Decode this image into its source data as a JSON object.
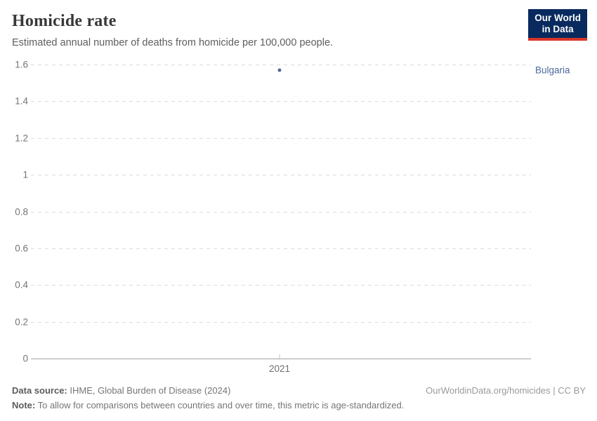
{
  "header": {
    "title": "Homicide rate",
    "subtitle": "Estimated annual number of deaths from homicide per 100,000 people.",
    "logo_line1": "Our World",
    "logo_line2": "in Data",
    "logo_bg_color": "#092a5e",
    "logo_accent_color": "#d8352a"
  },
  "chart_data": {
    "type": "scatter",
    "title": "Homicide rate",
    "subtitle": "Estimated annual number of deaths from homicide per 100,000 people.",
    "series": [
      {
        "name": "Bulgaria",
        "x": [
          2021
        ],
        "values": [
          1.57
        ]
      }
    ],
    "xticks": [
      2021
    ],
    "xtick_labels": [
      "2021"
    ],
    "yticks": [
      0,
      0.2,
      0.4,
      0.6,
      0.8,
      1,
      1.2,
      1.4,
      1.6
    ],
    "ytick_labels": [
      "0",
      "0.2",
      "0.4",
      "0.6",
      "0.8",
      "1",
      "1.2",
      "1.4",
      "1.6"
    ],
    "ylim": [
      0,
      1.6
    ],
    "xlabel": "",
    "ylabel": "",
    "grid": "horizontal-dashed",
    "legend_position": "right-of-point",
    "point_color": "#4c6a9c",
    "series_label_color": "#4c6a9c"
  },
  "footer": {
    "source_label": "Data source:",
    "source_text": " IHME, Global Burden of Disease (2024)",
    "credit": "OurWorldinData.org/homicides | CC BY",
    "note_label": "Note:",
    "note_text": " To allow for comparisons between countries and over time, this metric is age-standardized."
  }
}
